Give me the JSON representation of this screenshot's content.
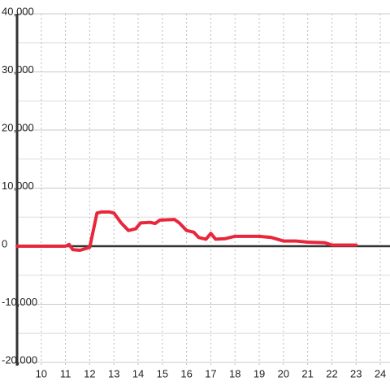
{
  "chart_data": {
    "type": "line",
    "x": [
      9,
      11,
      11.15,
      11.3,
      11.6,
      12,
      12.3,
      12.5,
      12.8,
      13.0,
      13.3,
      13.6,
      13.9,
      14.1,
      14.5,
      14.7,
      14.9,
      15.5,
      15.7,
      16.0,
      16.3,
      16.5,
      16.8,
      17.0,
      17.2,
      17.6,
      18.0,
      19.0,
      19.5,
      20.0,
      20.5,
      21.0,
      21.7,
      22.0,
      23.0
    ],
    "series": [
      {
        "color": "#e8263c",
        "values": [
          0,
          0,
          300,
          -600,
          -700,
          -200,
          5700,
          5900,
          5900,
          5700,
          4000,
          2700,
          3000,
          4000,
          4100,
          3900,
          4500,
          4600,
          4000,
          2700,
          2400,
          1500,
          1200,
          2200,
          1200,
          1300,
          1700,
          1700,
          1500,
          900,
          900,
          700,
          600,
          200,
          200
        ]
      }
    ],
    "xlim": [
      9,
      24.4
    ],
    "xticks": [
      10,
      11,
      12,
      13,
      14,
      15,
      16,
      17,
      18,
      19,
      20,
      21,
      22,
      23,
      24
    ],
    "ylim": [
      -20000,
      40000
    ],
    "yticks": [
      {
        "value": -20000,
        "label": "-20,000"
      },
      {
        "value": -10000,
        "label": "-10,000"
      },
      0,
      {
        "value": 10000,
        "label": "10,000"
      },
      {
        "value": 20000,
        "label": "20,000"
      },
      {
        "value": 30000,
        "label": "30,000"
      },
      {
        "value": 40000,
        "label": "40,000"
      }
    ],
    "y_minor_ticks": [
      -15000,
      -5000,
      5000,
      15000,
      25000,
      35000
    ],
    "grid": true
  }
}
